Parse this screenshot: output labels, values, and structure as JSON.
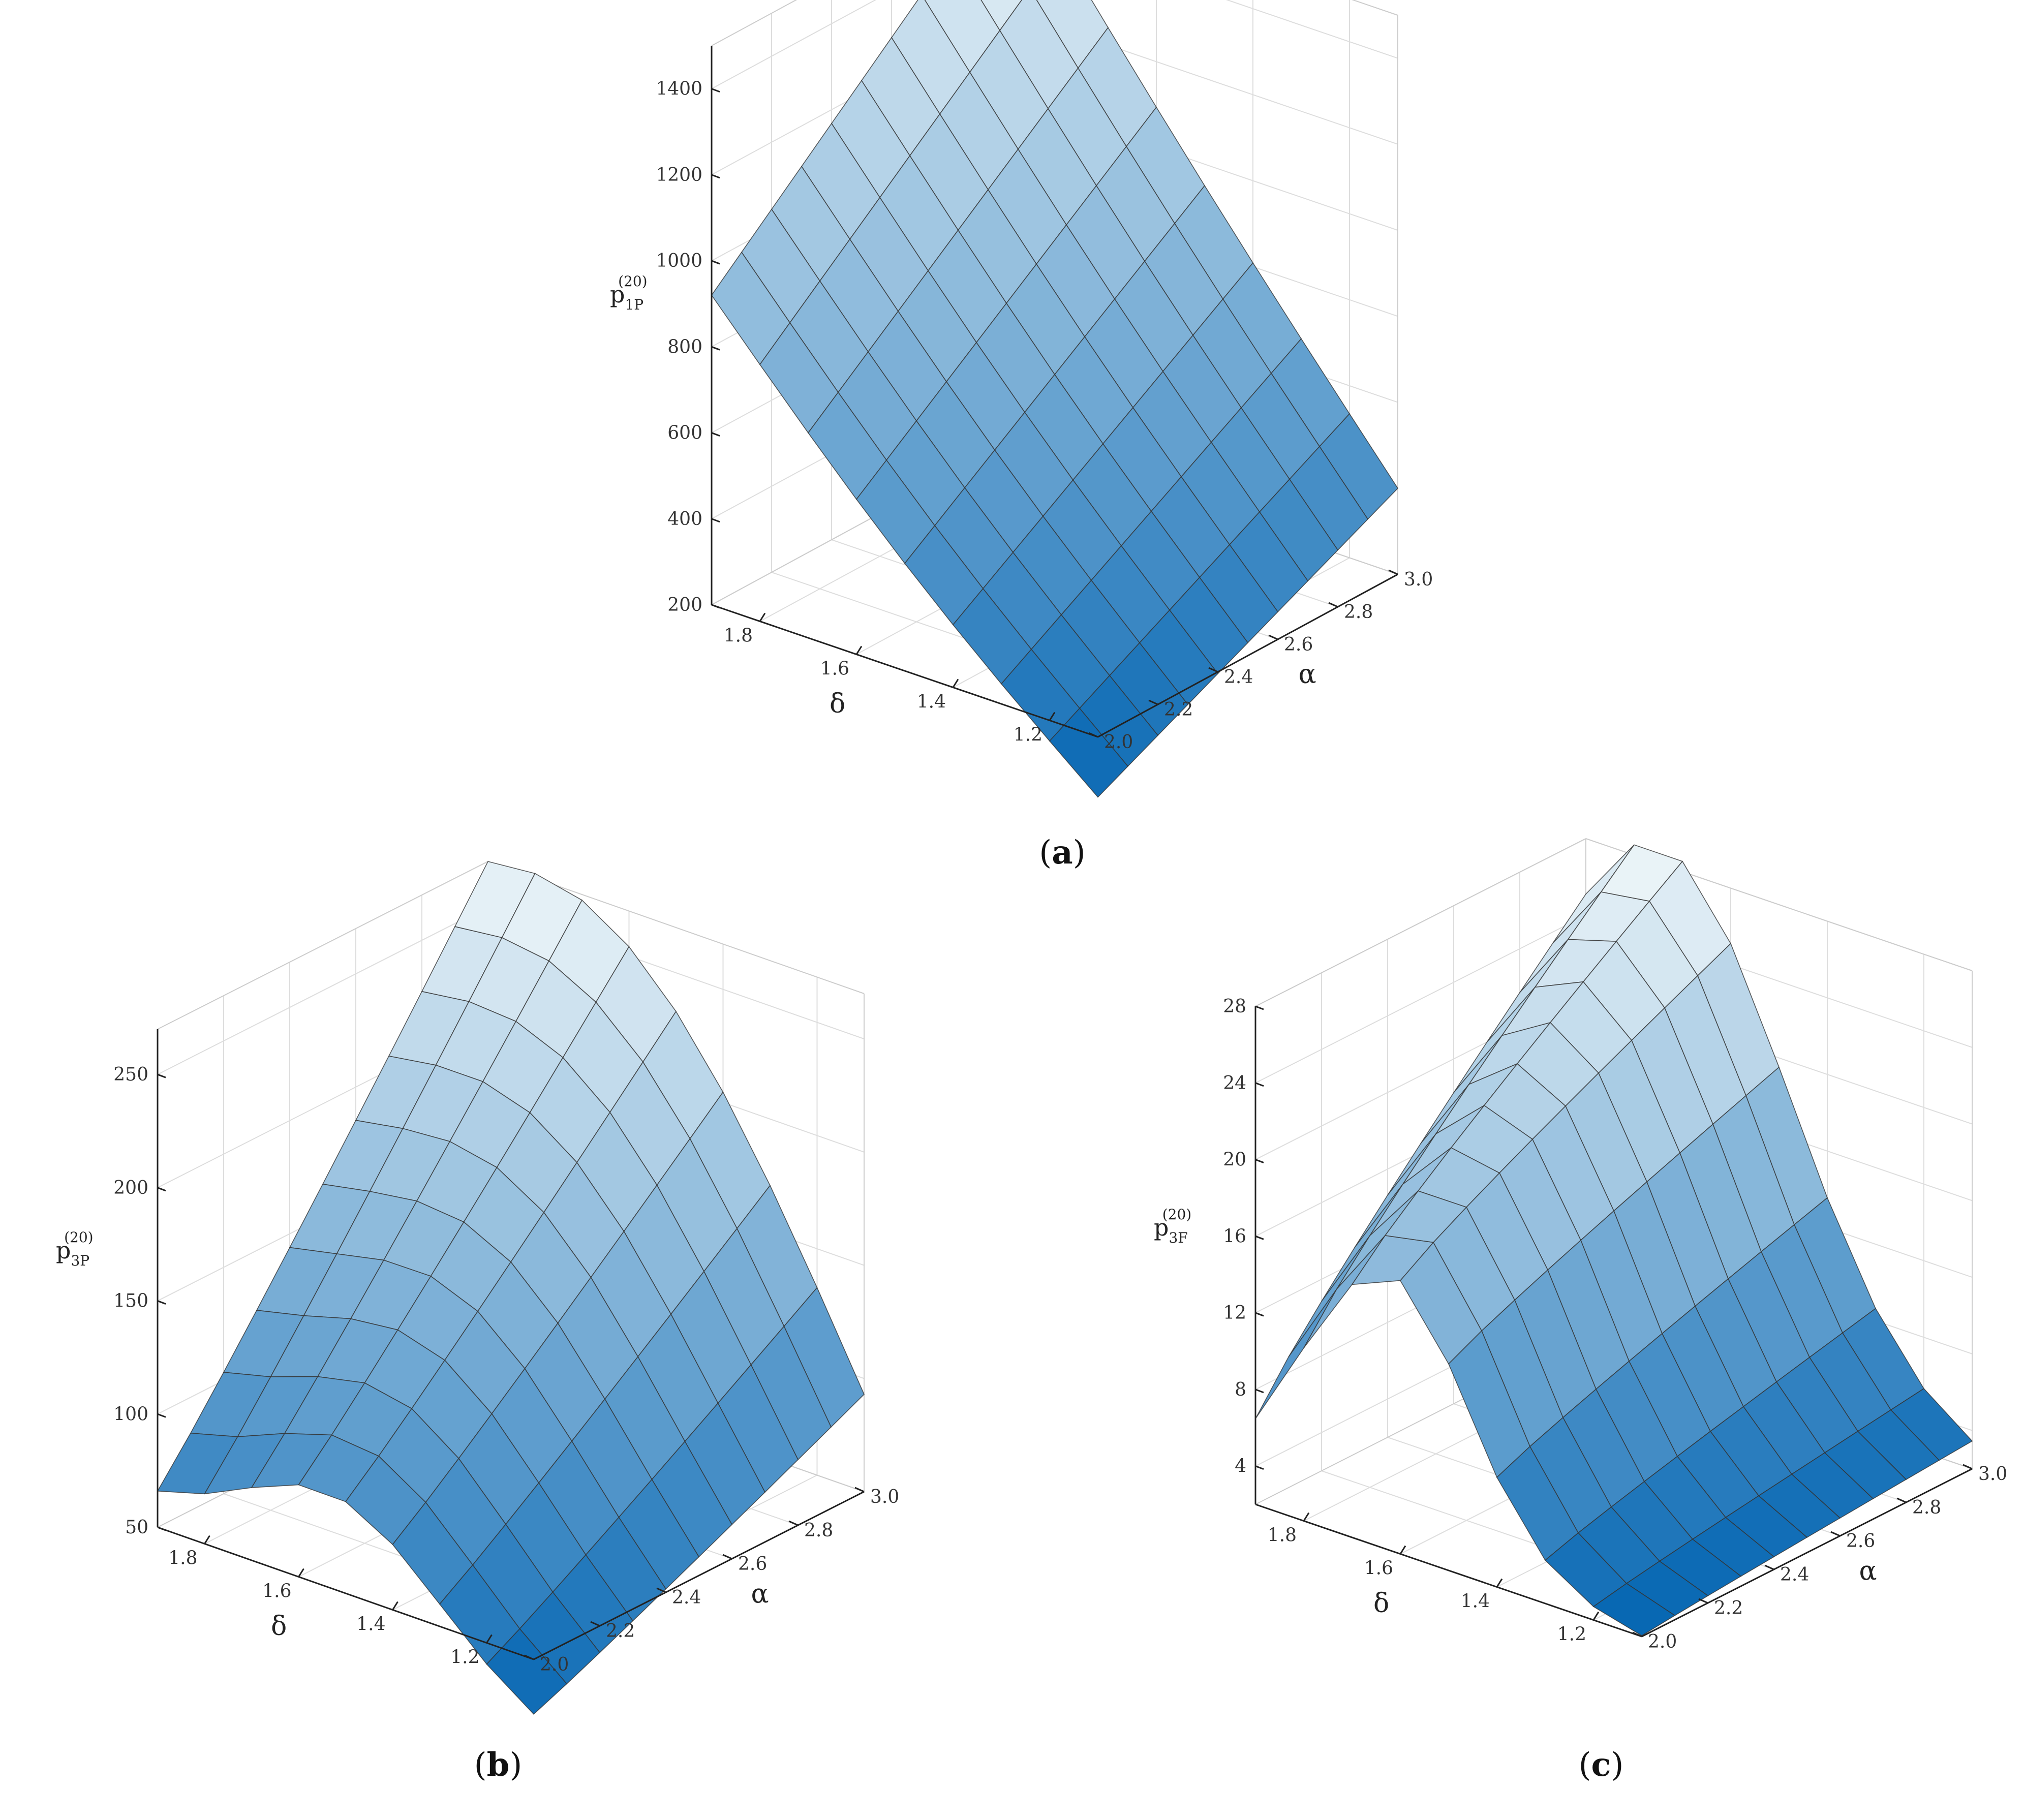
{
  "captions": {
    "a": "a",
    "b": "b",
    "c": "c"
  },
  "colors": {
    "surface_light": "#eef6f9",
    "surface_dark": "#0063b1",
    "mesh": "#333333",
    "grid": "#dddddd"
  },
  "chart_data": [
    {
      "type": "surface",
      "panel": "a",
      "zlabel": {
        "main": "p",
        "sub": "1P",
        "sup": "(20)"
      },
      "xlabel": "α",
      "ylabel": "δ",
      "xlim": [
        2.0,
        3.0
      ],
      "ylim": [
        1.1,
        1.9
      ],
      "zlim": [
        200,
        1500
      ],
      "x_ticks": [
        2.0,
        2.2,
        2.4,
        2.6,
        2.8,
        3.0
      ],
      "x_tick_labels": [
        "2.0",
        "2.2",
        "2.4",
        "2.6",
        "2.8",
        "3.0"
      ],
      "y_ticks": [
        1.2,
        1.4,
        1.6,
        1.8
      ],
      "y_tick_labels": [
        "1.2",
        "1.4",
        "1.6",
        "1.8"
      ],
      "z_ticks": [
        200,
        400,
        600,
        800,
        1000,
        1200,
        1400
      ],
      "z_tick_labels": [
        "200",
        "400",
        "600",
        "800",
        "1000",
        "1200",
        "1400"
      ],
      "grid_alpha": [
        2.0,
        2.1,
        2.2,
        2.3,
        2.4,
        2.5,
        2.6,
        2.7,
        2.8,
        2.9,
        3.0
      ],
      "grid_delta": [
        1.1,
        1.2,
        1.3,
        1.4,
        1.5,
        1.6,
        1.7,
        1.8,
        1.9
      ],
      "corner_values": {
        "alpha2_delta1.1": 60,
        "alpha3_delta1.1": 400,
        "alpha2_delta1.9": 920,
        "alpha3_delta1.9": 1540
      },
      "grid": true
    },
    {
      "type": "surface",
      "panel": "b",
      "zlabel": {
        "main": "p",
        "sub": "3P",
        "sup": "(20)"
      },
      "xlabel": "α",
      "ylabel": "δ",
      "xlim": [
        2.0,
        3.0
      ],
      "ylim": [
        1.1,
        1.9
      ],
      "zlim": [
        50,
        270
      ],
      "x_ticks": [
        2.0,
        2.2,
        2.4,
        2.6,
        2.8,
        3.0
      ],
      "x_tick_labels": [
        "2.0",
        "2.2",
        "2.4",
        "2.6",
        "2.8",
        "3.0"
      ],
      "y_ticks": [
        1.2,
        1.4,
        1.6,
        1.8
      ],
      "y_tick_labels": [
        "1.2",
        "1.4",
        "1.6",
        "1.8"
      ],
      "z_ticks": [
        50,
        100,
        150,
        200,
        250
      ],
      "z_tick_labels": [
        "50",
        "100",
        "150",
        "200",
        "250"
      ],
      "grid_alpha": [
        2.0,
        2.1,
        2.2,
        2.3,
        2.4,
        2.5,
        2.6,
        2.7,
        2.8,
        2.9,
        3.0
      ],
      "grid_delta": [
        1.1,
        1.2,
        1.3,
        1.4,
        1.5,
        1.6,
        1.7,
        1.8,
        1.9
      ],
      "corner_values": {
        "alpha2_delta1.1": 18,
        "alpha3_delta1.1": 93,
        "alpha2_delta1.9": 57,
        "alpha3_delta1.9": 272
      },
      "peak_delta": 1.5,
      "grid": true
    },
    {
      "type": "surface",
      "panel": "c",
      "zlabel": {
        "main": "p",
        "sub": "3F",
        "sup": "(20)"
      },
      "xlabel": "α",
      "ylabel": "δ",
      "xlim": [
        2.0,
        3.0
      ],
      "ylim": [
        1.1,
        1.9
      ],
      "zlim": [
        2,
        28
      ],
      "x_ticks": [
        2.0,
        2.2,
        2.4,
        2.6,
        2.8,
        3.0
      ],
      "x_tick_labels": [
        "2.0",
        "2.2",
        "2.4",
        "2.6",
        "2.8",
        "3.0"
      ],
      "y_ticks": [
        1.2,
        1.4,
        1.6,
        1.8
      ],
      "y_tick_labels": [
        "1.2",
        "1.4",
        "1.6",
        "1.8"
      ],
      "z_ticks": [
        4,
        8,
        12,
        16,
        20,
        24,
        28
      ],
      "z_tick_labels": [
        "4",
        "8",
        "12",
        "16",
        "20",
        "24",
        "28"
      ],
      "grid_alpha": [
        2.0,
        2.1,
        2.2,
        2.3,
        2.4,
        2.5,
        2.6,
        2.7,
        2.8,
        2.9,
        3.0
      ],
      "grid_delta": [
        1.1,
        1.2,
        1.3,
        1.4,
        1.5,
        1.6,
        1.7,
        1.8,
        1.9
      ],
      "corner_values": {
        "alpha2_delta1.1": 2,
        "alpha3_delta1.1": 2,
        "alpha2_delta1.9": 5.5,
        "alpha3_delta1.9": 29
      },
      "peak_delta": 1.55,
      "grid": true
    }
  ]
}
